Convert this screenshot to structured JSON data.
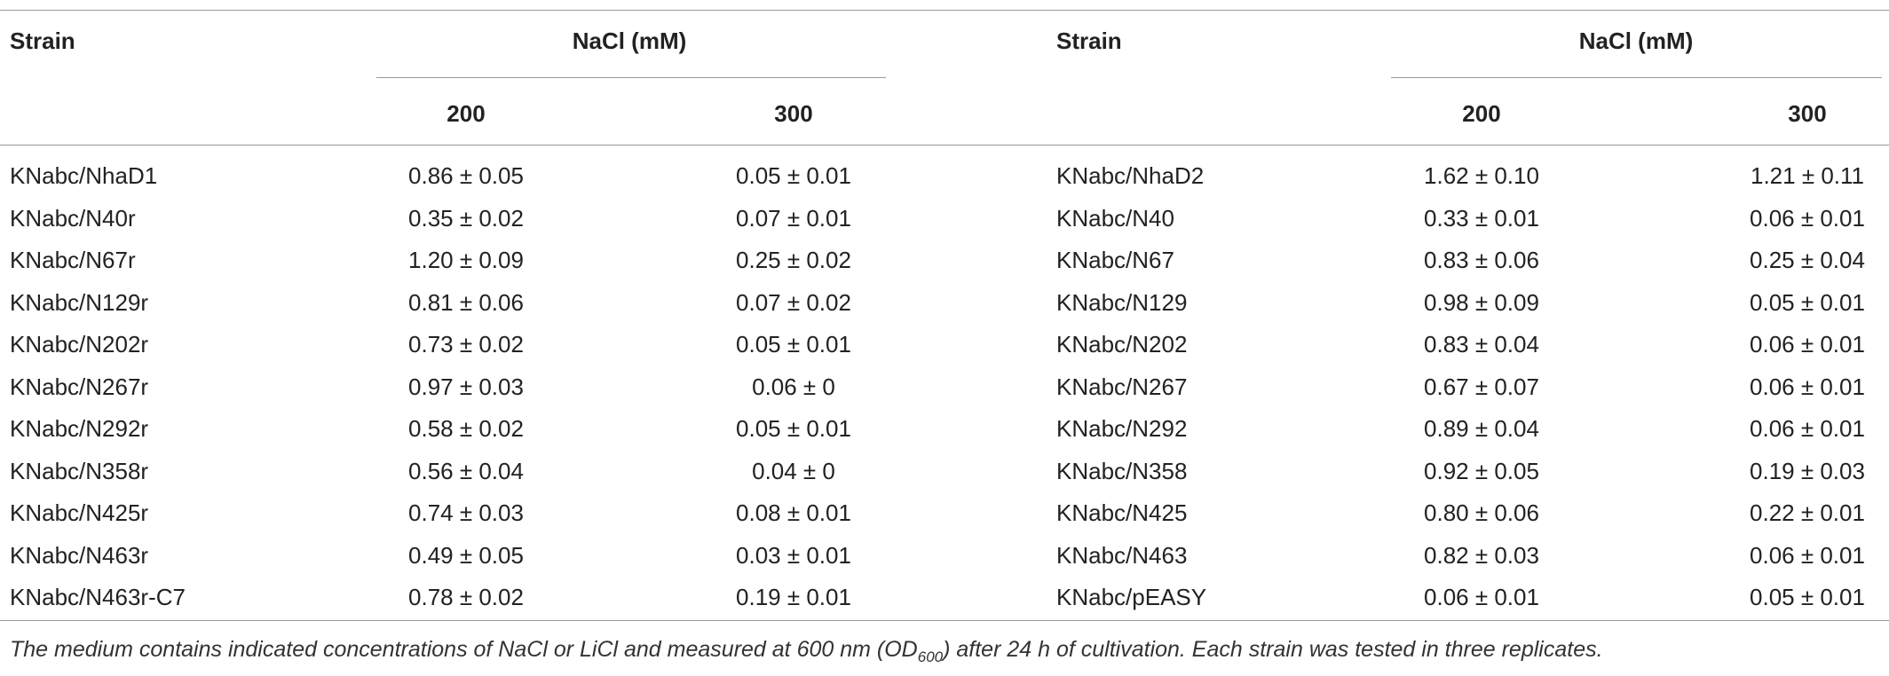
{
  "table": {
    "header": {
      "row1": [
        "Strain",
        "NaCl (mM)",
        "Strain",
        "NaCl (mM)"
      ],
      "row2": [
        "200",
        "300",
        "200",
        "300"
      ]
    },
    "rows": [
      [
        "KNabc/NhaD1",
        "0.86 ± 0.05",
        "0.05 ± 0.01",
        "KNabc/NhaD2",
        "1.62 ± 0.10",
        "1.21 ± 0.11"
      ],
      [
        "KNabc/N40r",
        "0.35 ± 0.02",
        "0.07 ± 0.01",
        "KNabc/N40",
        "0.33 ± 0.01",
        "0.06 ± 0.01"
      ],
      [
        "KNabc/N67r",
        "1.20 ± 0.09",
        "0.25 ± 0.02",
        "KNabc/N67",
        "0.83 ± 0.06",
        "0.25 ± 0.04"
      ],
      [
        "KNabc/N129r",
        "0.81 ± 0.06",
        "0.07 ± 0.02",
        "KNabc/N129",
        "0.98 ± 0.09",
        "0.05 ± 0.01"
      ],
      [
        "KNabc/N202r",
        "0.73 ± 0.02",
        "0.05 ± 0.01",
        "KNabc/N202",
        "0.83 ± 0.04",
        "0.06 ± 0.01"
      ],
      [
        "KNabc/N267r",
        "0.97 ± 0.03",
        "0.06 ± 0",
        "KNabc/N267",
        "0.67 ± 0.07",
        "0.06 ± 0.01"
      ],
      [
        "KNabc/N292r",
        "0.58 ± 0.02",
        "0.05 ± 0.01",
        "KNabc/N292",
        "0.89 ± 0.04",
        "0.06 ± 0.01"
      ],
      [
        "KNabc/N358r",
        "0.56 ± 0.04",
        "0.04 ± 0",
        "KNabc/N358",
        "0.92 ± 0.05",
        "0.19 ± 0.03"
      ],
      [
        "KNabc/N425r",
        "0.74 ± 0.03",
        "0.08 ± 0.01",
        "KNabc/N425",
        "0.80 ± 0.06",
        "0.22 ± 0.01"
      ],
      [
        "KNabc/N463r",
        "0.49 ± 0.05",
        "0.03 ± 0.01",
        "KNabc/N463",
        "0.82 ± 0.03",
        "0.06 ± 0.01"
      ],
      [
        "KNabc/N463r-C7",
        "0.78 ± 0.02",
        "0.19 ± 0.01",
        "KNabc/pEASY",
        "0.06 ± 0.01",
        "0.05 ± 0.01"
      ]
    ]
  },
  "note": {
    "before": "The medium contains indicated concentrations of NaCl or LiCl and measured at 600 nm (OD",
    "subscript": "600",
    "after": ") after 24 h of cultivation. Each strain was tested in three replicates."
  }
}
